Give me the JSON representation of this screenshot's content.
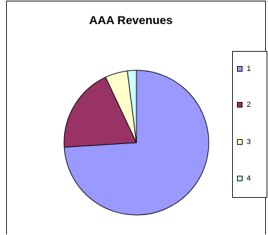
{
  "chart_data": {
    "type": "pie",
    "title": "AAA Revenues",
    "categories": [
      "1",
      "2",
      "3",
      "4"
    ],
    "values": [
      74,
      19,
      5,
      2
    ],
    "colors": [
      "#9999FF",
      "#993366",
      "#FFFFCC",
      "#CCFFFF"
    ],
    "legend": "right"
  }
}
